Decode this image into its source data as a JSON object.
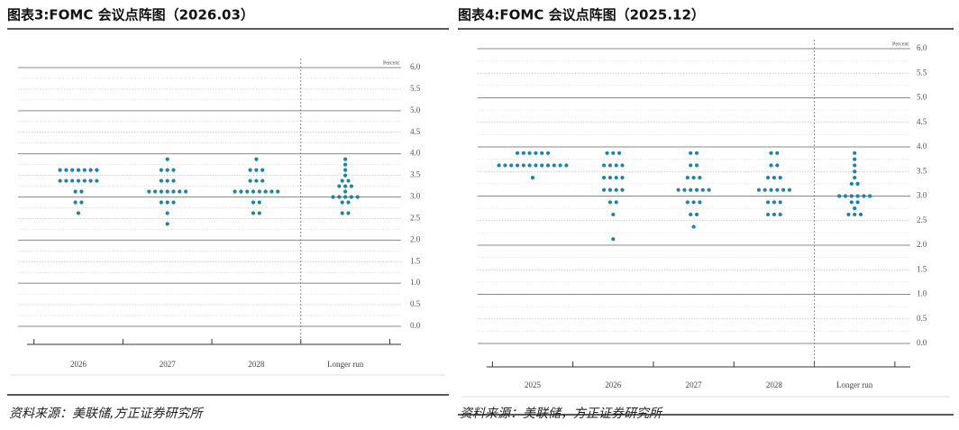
{
  "chart_data": [
    {
      "type": "dot",
      "title": "图表3:FOMC 会议点阵图（2026.03）",
      "y_label": "Percent",
      "source": "资料来源：美联储,方正证券研究所",
      "color": "#1b82a8",
      "categories": [
        "2026",
        "2027",
        "2028",
        "Longer run"
      ],
      "values": [
        [
          3.625,
          3.625,
          3.625,
          3.625,
          3.625,
          3.625,
          3.625,
          3.375,
          3.375,
          3.375,
          3.375,
          3.375,
          3.375,
          3.375,
          3.125,
          3.125,
          2.875,
          2.875,
          2.625
        ],
        [
          3.875,
          3.625,
          3.625,
          3.625,
          3.375,
          3.375,
          3.375,
          3.125,
          3.125,
          3.125,
          3.125,
          3.125,
          3.125,
          3.125,
          2.875,
          2.875,
          2.875,
          2.625,
          2.375
        ],
        [
          3.875,
          3.625,
          3.625,
          3.625,
          3.375,
          3.375,
          3.375,
          3.125,
          3.125,
          3.125,
          3.125,
          3.125,
          3.125,
          3.125,
          3.125,
          2.875,
          2.875,
          2.625,
          2.625
        ],
        [
          3.875,
          3.75,
          3.625,
          3.5,
          3.375,
          3.375,
          3.25,
          3.25,
          3.25,
          3.125,
          3.0,
          3.0,
          3.0,
          3.0,
          3.0,
          2.875,
          2.875,
          2.625,
          2.625
        ]
      ],
      "ylim": [
        0,
        6
      ],
      "yticks": [
        {
          "value": 0,
          "label": "0.0"
        },
        {
          "value": 0.5,
          "label": "0.5"
        },
        {
          "value": 1,
          "label": "1.0"
        },
        {
          "value": 1.5,
          "label": "1.5"
        },
        {
          "value": 2,
          "label": "2.0"
        },
        {
          "value": 2.5,
          "label": "2.5"
        },
        {
          "value": 3,
          "label": "3.0"
        },
        {
          "value": 3.5,
          "label": "3.5"
        },
        {
          "value": 4,
          "label": "4.0"
        },
        {
          "value": 4.5,
          "label": "4.5"
        },
        {
          "value": 5,
          "label": "5.0"
        },
        {
          "value": 5.5,
          "label": "5.5"
        },
        {
          "value": 6,
          "label": "6.0"
        }
      ],
      "grid": true
    },
    {
      "type": "dot",
      "title": "图表4:FOMC 会议点阵图（2025.12）",
      "y_label": "Percent",
      "source": "资料来源：美联储，方正证券研究所",
      "color": "#1b82a8",
      "categories": [
        "2025",
        "2026",
        "2027",
        "2028",
        "Longer run"
      ],
      "values": [
        [
          3.875,
          3.875,
          3.875,
          3.875,
          3.875,
          3.875,
          3.625,
          3.625,
          3.625,
          3.625,
          3.625,
          3.625,
          3.625,
          3.625,
          3.625,
          3.625,
          3.625,
          3.625,
          3.375
        ],
        [
          3.875,
          3.875,
          3.875,
          3.625,
          3.625,
          3.625,
          3.625,
          3.375,
          3.375,
          3.375,
          3.375,
          3.125,
          3.125,
          3.125,
          3.125,
          2.875,
          2.875,
          2.625,
          2.125
        ],
        [
          3.875,
          3.875,
          3.625,
          3.625,
          3.375,
          3.375,
          3.375,
          3.125,
          3.125,
          3.125,
          3.125,
          3.125,
          3.125,
          2.875,
          2.875,
          2.875,
          2.625,
          2.625,
          2.375
        ],
        [
          3.875,
          3.875,
          3.625,
          3.625,
          3.375,
          3.375,
          3.375,
          3.125,
          3.125,
          3.125,
          3.125,
          3.125,
          3.125,
          2.875,
          2.875,
          2.875,
          2.625,
          2.625,
          2.625
        ],
        [
          3.875,
          3.75,
          3.625,
          3.5,
          3.375,
          3.25,
          3.25,
          3.0,
          3.0,
          3.0,
          3.0,
          3.0,
          3.0,
          2.875,
          2.875,
          2.75,
          2.625,
          2.625,
          2.625
        ]
      ],
      "ylim": [
        0,
        6
      ],
      "yticks": [
        {
          "value": 0,
          "label": "0.0"
        },
        {
          "value": 0.5,
          "label": "0.5"
        },
        {
          "value": 1,
          "label": "1.0"
        },
        {
          "value": 1.5,
          "label": "1.5"
        },
        {
          "value": 2,
          "label": "2.0"
        },
        {
          "value": 2.5,
          "label": "2.5"
        },
        {
          "value": 3,
          "label": "3.0"
        },
        {
          "value": 3.5,
          "label": "3.5"
        },
        {
          "value": 4,
          "label": "4.0"
        },
        {
          "value": 4.5,
          "label": "4.5"
        },
        {
          "value": 5,
          "label": "5.0"
        },
        {
          "value": 5.5,
          "label": "5.5"
        },
        {
          "value": 6,
          "label": "6.0"
        }
      ],
      "grid": true
    }
  ]
}
